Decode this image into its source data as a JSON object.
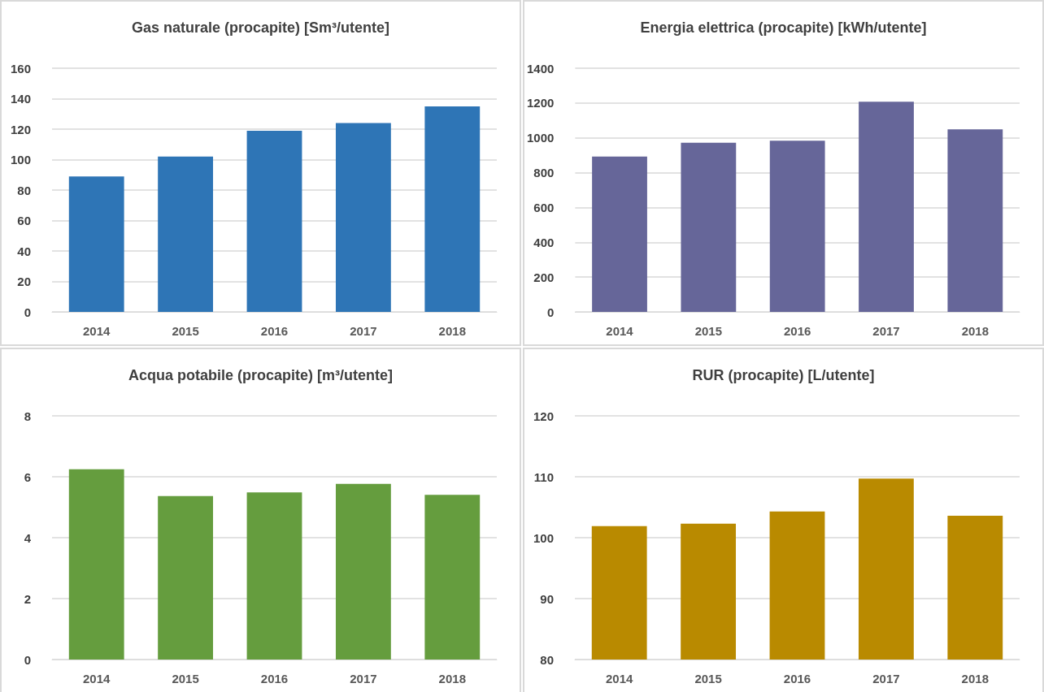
{
  "chart_data": [
    {
      "type": "bar",
      "title": "Gas naturale (procapite) [Sm³/utente]",
      "categories": [
        "2014",
        "2015",
        "2016",
        "2017",
        "2018"
      ],
      "values": [
        89,
        102,
        119,
        124,
        135
      ],
      "color": "#2e75b6",
      "ylim": [
        0,
        160
      ],
      "yticks": [
        0,
        20,
        40,
        60,
        80,
        100,
        120,
        140,
        160
      ],
      "grid": "y"
    },
    {
      "type": "bar",
      "title": "Energia elettrica (procapite) [kWh/utente]",
      "categories": [
        "2014",
        "2015",
        "2016",
        "2017",
        "2018"
      ],
      "values": [
        893,
        972,
        983,
        1208,
        1049
      ],
      "color": "#666699",
      "ylim": [
        0,
        1400
      ],
      "yticks": [
        0,
        200,
        400,
        600,
        800,
        1000,
        1200,
        1400
      ],
      "grid": "y"
    },
    {
      "type": "bar",
      "title": "Acqua potabile (procapite) [m³/utente]",
      "categories": [
        "2014",
        "2015",
        "2016",
        "2017",
        "2018"
      ],
      "values": [
        6.25,
        5.37,
        5.49,
        5.77,
        5.41
      ],
      "color": "#659d3e",
      "ylim": [
        0,
        8
      ],
      "yticks": [
        0,
        2,
        4,
        6,
        8
      ],
      "grid": "y"
    },
    {
      "type": "bar",
      "title": "RUR (procapite) [L/utente]",
      "categories": [
        "2014",
        "2015",
        "2016",
        "2017",
        "2018"
      ],
      "values": [
        101.9,
        102.3,
        104.3,
        109.7,
        103.6
      ],
      "color": "#b98a00",
      "ylim": [
        80,
        120
      ],
      "yticks": [
        80,
        90,
        100,
        110,
        120
      ],
      "grid": "y"
    }
  ]
}
